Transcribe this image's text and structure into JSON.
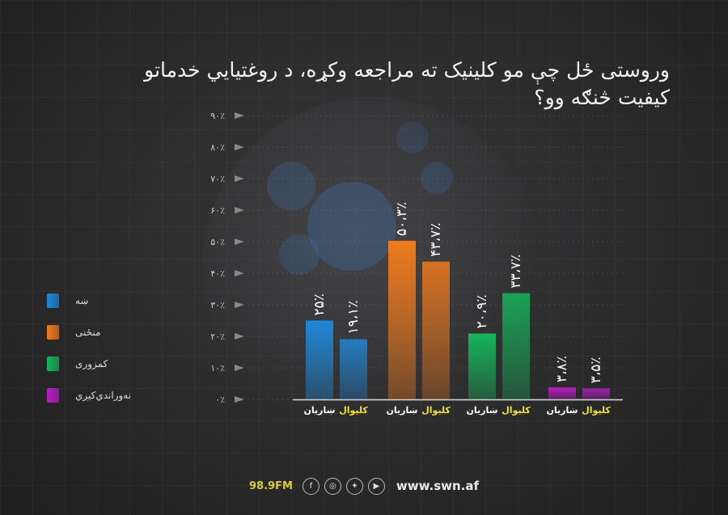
{
  "title": "وروستی ځل چې مو کلینیک ته مراجعه وکړه، د روغتیایي خدماتو کیفیت څنګه وو؟",
  "chart_data": {
    "type": "bar",
    "categories": [
      "ښاريان",
      "کليوال",
      "ښاريان",
      "کليوال",
      "ښاريان",
      "کليوال",
      "ښاريان",
      "کليوال"
    ],
    "values": [
      25.0,
      19.1,
      50.3,
      43.7,
      20.9,
      33.7,
      3.8,
      3.5
    ],
    "value_labels": [
      "۲۵٪",
      "۱۹،۱٪",
      "۵۰،۳٪",
      "۴۳،۷٪",
      "۲۰،۹٪",
      "۳۳،۷٪",
      "۳،۸٪",
      "۳،۵٪"
    ],
    "groups": [
      "ښه",
      "منځنی",
      "کمزوری",
      "نه‌وراندي‌کیږي"
    ],
    "ylim": [
      0,
      90
    ],
    "yticks": [
      "۰٪",
      "۱۰٪",
      "۲۰٪",
      "۳۰٪",
      "۴۰٪",
      "۵۰٪",
      "۶۰٪",
      "۷۰٪",
      "۸۰٪",
      "۹۰٪"
    ],
    "category_colors": [
      "#ffffff",
      "#f2e233",
      "#ffffff",
      "#f2e233",
      "#ffffff",
      "#f2e233",
      "#ffffff",
      "#f2e233"
    ]
  },
  "legend": [
    {
      "label": "ښه",
      "color": "#1e88d8"
    },
    {
      "label": "منځنی",
      "color": "#f07a1c"
    },
    {
      "label": "کمزوری",
      "color": "#16b55a"
    },
    {
      "label": "نه‌وراندي‌کیږي",
      "color": "#b51ec4"
    }
  ],
  "footer": {
    "fm": "98.9FM",
    "url": "www.swn.af",
    "icons": [
      "facebook-icon",
      "instagram-icon",
      "twitter-icon",
      "youtube-icon"
    ]
  }
}
